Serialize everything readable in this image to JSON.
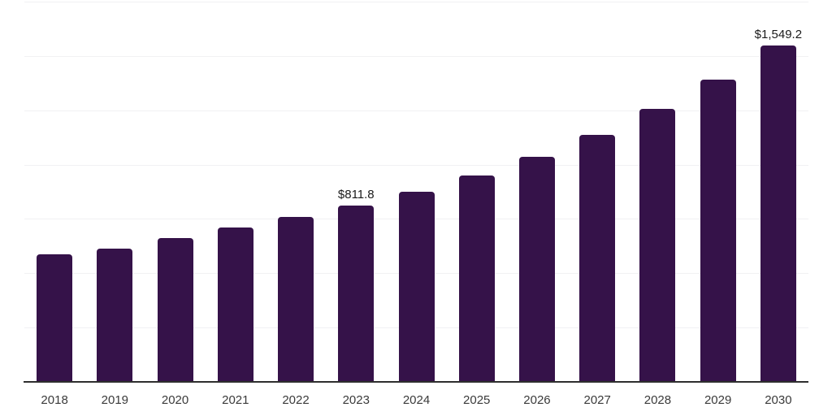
{
  "chart_data": {
    "type": "bar",
    "title": "",
    "xlabel": "",
    "ylabel": "",
    "categories": [
      "2018",
      "2019",
      "2020",
      "2021",
      "2022",
      "2023",
      "2024",
      "2025",
      "2026",
      "2027",
      "2028",
      "2029",
      "2030"
    ],
    "values": [
      588.3,
      614.3,
      661.6,
      710.6,
      760.2,
      811.8,
      873.8,
      949.7,
      1035.6,
      1136.9,
      1255.5,
      1390.4,
      1549.2
    ],
    "data_labels": [
      "",
      "",
      "",
      "",
      "",
      "$811.8",
      "",
      "",
      "",
      "",
      "",
      "",
      "$1,549.2"
    ],
    "ylim": [
      0,
      1750
    ],
    "gridline_step": 250,
    "grid": true,
    "legend_position": "none",
    "colors": {
      "bar": "#351249",
      "data_label": "#1a1a1a",
      "tick_label": "#3a3a3a",
      "gridline": "#f1f1f3",
      "axis_line": "#2e2e2e",
      "background": "#ffffff"
    }
  }
}
